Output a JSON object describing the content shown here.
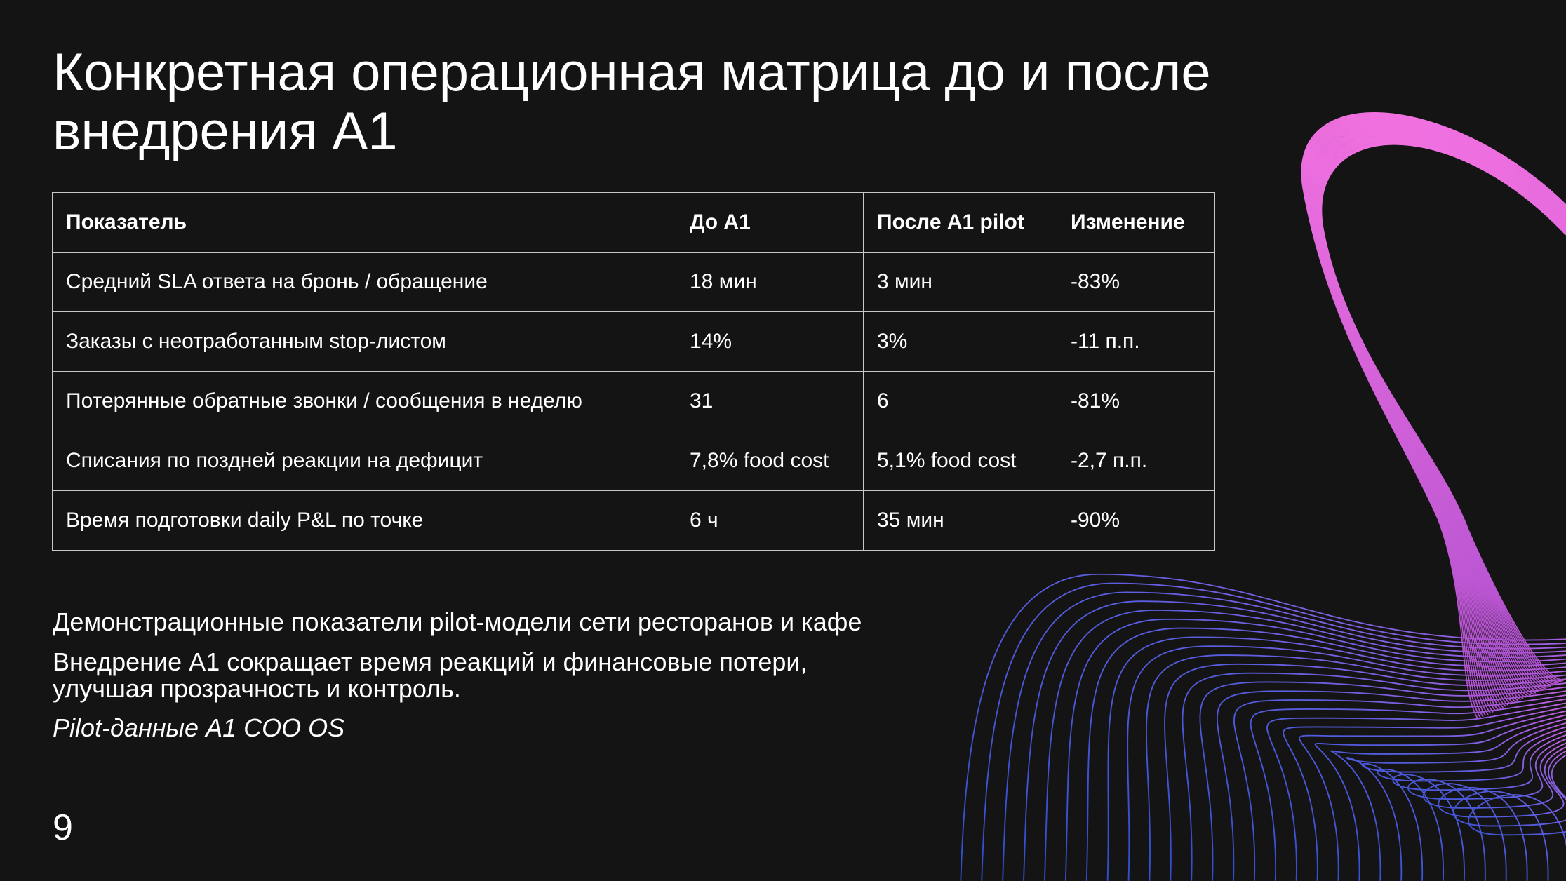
{
  "title": "Конкретная операционная матрица до и после внедрения A1",
  "table": {
    "header": [
      "Показатель",
      "До A1",
      "После A1 pilot",
      "Изменение"
    ],
    "rows": [
      [
        "Средний SLA ответа на бронь / обращение",
        "18 мин",
        "3 мин",
        "-83%"
      ],
      [
        "Заказы с неотработанным stop-листом",
        "14%",
        "3%",
        "-11 п.п."
      ],
      [
        "Потерянные обратные звонки / сообщения в неделю",
        "31",
        "6",
        "-81%"
      ],
      [
        "Списания по поздней реакции на дефицит",
        "7,8% food cost",
        "5,1% food cost",
        "-2,7 п.п."
      ],
      [
        "Время подготовки daily P&L по точке",
        "6 ч",
        "35 мин",
        "-90%"
      ]
    ]
  },
  "notes": [
    "Демонстрационные показатели pilot-модели сети ресторанов и кафе",
    "Внедрение A1 сокращает время реакций и финансовые потери, улучшая прозрачность и контроль."
  ],
  "source": "Pilot-данные A1 COO OS",
  "page_number": "9"
}
